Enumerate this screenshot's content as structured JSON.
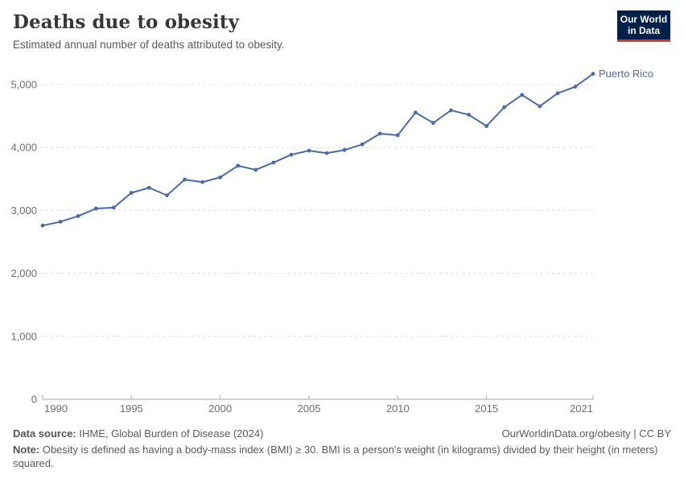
{
  "header": {
    "title": "Deaths due to obesity",
    "subtitle": "Estimated annual number of deaths attributed to obesity.",
    "logo": {
      "line1": "Our World",
      "line2": "in Data"
    }
  },
  "chart_data": {
    "type": "line",
    "title": "Deaths due to obesity",
    "xlabel": "",
    "ylabel": "",
    "x": [
      1990,
      1991,
      1992,
      1993,
      1994,
      1995,
      1996,
      1997,
      1998,
      1999,
      2000,
      2001,
      2002,
      2003,
      2004,
      2005,
      2006,
      2007,
      2008,
      2009,
      2010,
      2011,
      2012,
      2013,
      2014,
      2015,
      2016,
      2017,
      2018,
      2019,
      2020,
      2021
    ],
    "series": [
      {
        "name": "Puerto Rico",
        "color": "#4a6ba8",
        "values": [
          2760,
          2820,
          2910,
          3030,
          3045,
          3280,
          3360,
          3240,
          3490,
          3450,
          3525,
          3710,
          3645,
          3760,
          3885,
          3950,
          3910,
          3960,
          4050,
          4220,
          4195,
          4555,
          4390,
          4590,
          4520,
          4340,
          4640,
          4835,
          4655,
          4860,
          4965,
          5170
        ]
      }
    ],
    "x_tick_labels": [
      "1990",
      "1995",
      "2000",
      "2005",
      "2010",
      "2015",
      "2021"
    ],
    "x_ticks": [
      1990,
      1995,
      2000,
      2005,
      2010,
      2015,
      2021
    ],
    "y_ticks": [
      0,
      1000,
      2000,
      3000,
      4000,
      5000
    ],
    "y_tick_labels": [
      "0",
      "1,000",
      "2,000",
      "3,000",
      "4,000",
      "5,000"
    ],
    "xlim": [
      1990,
      2021
    ],
    "ylim": [
      0,
      5300
    ],
    "grid": "horizontal-dashed",
    "legend_position": "end-of-line-label",
    "entity_label": "Puerto Rico"
  },
  "colors": {
    "line": "#4a6ba8",
    "entity_label": "#3d5f9e",
    "grid": "#dcdcdc",
    "axis": "#a8a8a8",
    "tick_text": "#6e6e6e",
    "logo_bg": "#002147",
    "logo_red": "#e0312a"
  },
  "footer": {
    "data_source_label": "Data source:",
    "data_source": " IHME, Global Burden of Disease (2024)",
    "license": "OurWorldinData.org/obesity | CC BY",
    "note_label": "Note:",
    "note": " Obesity is defined as having a body-mass index (BMI) ≥ 30. BMI is a person's weight (in kilograms) divided by their height (in meters) squared."
  }
}
